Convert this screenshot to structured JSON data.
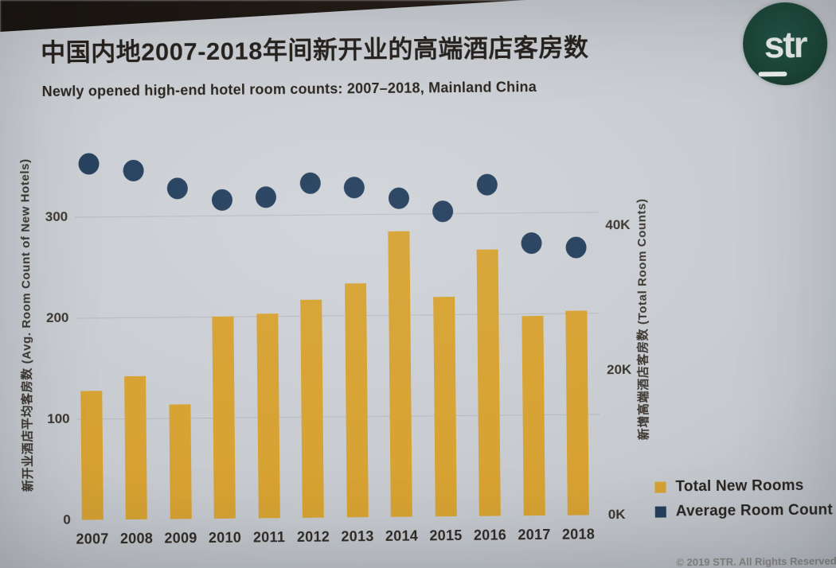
{
  "slide": {
    "title": "中国内地2007-2018年间新开业的高端酒店客房数",
    "subtitle": "Newly opened high-end hotel room counts: 2007–2018, Mainland China",
    "footer": "© 2019 STR. All Rights Reserved.",
    "logo_text": "str"
  },
  "colors": {
    "bar": "#D7A232",
    "dot": "#25405E",
    "logo_green": "#1B4637",
    "background": "#C7CBD0"
  },
  "chart_data": {
    "type": "combo",
    "categories": [
      "2007",
      "2008",
      "2009",
      "2010",
      "2011",
      "2012",
      "2013",
      "2014",
      "2015",
      "2016",
      "2017",
      "2018"
    ],
    "series": [
      {
        "name": "Total New Rooms",
        "type": "bar",
        "axis": "right",
        "color": "#D7A232",
        "values": [
          17800,
          19800,
          15800,
          27900,
          28200,
          30100,
          32300,
          39500,
          30300,
          36800,
          27600,
          28200
        ]
      },
      {
        "name": "Average Room Count",
        "type": "scatter",
        "axis": "left",
        "color": "#25405E",
        "values": [
          352,
          345,
          327,
          315,
          318,
          331,
          326,
          315,
          302,
          328,
          270,
          265
        ]
      }
    ],
    "left_axis": {
      "title": "新开业酒店平均客房数 (Avg. Room Count of New Hotels)",
      "tick_labels": [
        "0",
        "100",
        "200",
        "300"
      ],
      "tick_values": [
        0,
        100,
        200,
        300
      ],
      "range": [
        0,
        386
      ]
    },
    "right_axis": {
      "title": "新增高端酒店客房数 (Total Room Counts)",
      "tick_labels": [
        "0K",
        "20K",
        "40K"
      ],
      "tick_values": [
        0,
        20000,
        40000
      ],
      "range": [
        0,
        53800
      ]
    },
    "legend_position": "bottom-right",
    "legend": [
      {
        "label": "Total New Rooms",
        "color": "#D7A232"
      },
      {
        "label": "Average Room Count",
        "color": "#25405E"
      }
    ],
    "grid": "faint-horizontal"
  }
}
